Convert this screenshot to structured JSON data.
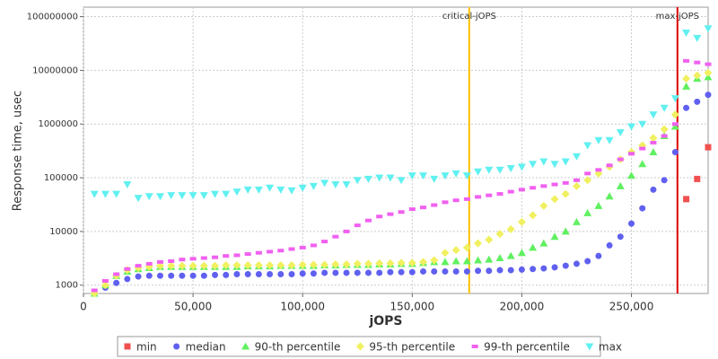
{
  "chart_data": {
    "type": "scatter",
    "x_label": "jOPS",
    "y_label": "Response time, usec",
    "log_y": true,
    "grid": true,
    "legend": "bottom",
    "xlim": [
      0,
      285000
    ],
    "ylim": [
      700,
      150000000
    ],
    "xticks": [
      0,
      {
        "value": 50000,
        "label": "50,000"
      },
      {
        "value": 100000,
        "label": "100,000"
      },
      {
        "value": 150000,
        "label": "150,000"
      },
      {
        "value": 200000,
        "label": "200,000"
      },
      {
        "value": 250000,
        "label": "250,000"
      }
    ],
    "yticks": [
      1000,
      10000,
      100000,
      1000000,
      10000000,
      100000000
    ],
    "markers": [
      {
        "label": "critical-jOPS",
        "value": 176000,
        "color": "#ffc000"
      },
      {
        "label": "max-jOPS",
        "value": 271000,
        "color": "#e00000"
      }
    ],
    "x": [
      5000,
      10000,
      15000,
      20000,
      25000,
      30000,
      35000,
      40000,
      45000,
      50000,
      55000,
      60000,
      65000,
      70000,
      75000,
      80000,
      85000,
      90000,
      95000,
      100000,
      105000,
      110000,
      115000,
      120000,
      125000,
      130000,
      135000,
      140000,
      145000,
      150000,
      155000,
      160000,
      165000,
      170000,
      175000,
      180000,
      185000,
      190000,
      195000,
      200000,
      205000,
      210000,
      215000,
      220000,
      225000,
      230000,
      235000,
      240000,
      245000,
      250000,
      255000,
      260000,
      265000,
      270000,
      275000,
      280000,
      285000
    ],
    "series": [
      {
        "name": "min",
        "color": "#f05050",
        "marker": "square",
        "values": [
          null,
          null,
          null,
          null,
          null,
          null,
          null,
          null,
          null,
          null,
          null,
          null,
          null,
          null,
          null,
          null,
          null,
          null,
          null,
          null,
          null,
          null,
          null,
          null,
          null,
          null,
          null,
          null,
          null,
          null,
          null,
          null,
          null,
          null,
          null,
          null,
          null,
          null,
          null,
          null,
          null,
          null,
          null,
          null,
          null,
          null,
          null,
          null,
          null,
          null,
          null,
          null,
          null,
          null,
          40000,
          95000,
          370000
        ]
      },
      {
        "name": "median",
        "color": "#6060f0",
        "marker": "circle",
        "values": [
          700,
          900,
          1100,
          1300,
          1450,
          1500,
          1500,
          1500,
          1500,
          1500,
          1500,
          1550,
          1550,
          1600,
          1600,
          1600,
          1600,
          1600,
          1600,
          1650,
          1650,
          1700,
          1700,
          1700,
          1700,
          1700,
          1700,
          1750,
          1750,
          1750,
          1800,
          1800,
          1800,
          1800,
          1800,
          1850,
          1850,
          1900,
          1900,
          1950,
          2000,
          2050,
          2150,
          2300,
          2500,
          2800,
          3500,
          5500,
          8000,
          14000,
          27000,
          60000,
          90000,
          300000,
          2000000,
          2600000,
          3500000
        ]
      },
      {
        "name": "90-th percentile",
        "color": "#60f060",
        "marker": "triangle-up",
        "values": [
          700,
          1000,
          1500,
          1800,
          2000,
          2100,
          2200,
          2200,
          2200,
          2200,
          2200,
          2200,
          2200,
          2200,
          2250,
          2250,
          2250,
          2300,
          2300,
          2300,
          2300,
          2350,
          2350,
          2400,
          2400,
          2400,
          2450,
          2450,
          2500,
          2500,
          2600,
          2700,
          2700,
          2800,
          2800,
          2900,
          3000,
          3200,
          3500,
          4000,
          5000,
          6000,
          8000,
          10000,
          15000,
          22000,
          30000,
          45000,
          70000,
          110000,
          180000,
          300000,
          600000,
          900000,
          5000000,
          7000000,
          7500000
        ]
      },
      {
        "name": "95-th percentile",
        "color": "#f0f060",
        "marker": "diamond",
        "values": [
          700,
          1000,
          1500,
          1900,
          2100,
          2200,
          2300,
          2300,
          2300,
          2300,
          2300,
          2300,
          2350,
          2350,
          2350,
          2350,
          2350,
          2350,
          2350,
          2400,
          2400,
          2400,
          2450,
          2450,
          2500,
          2500,
          2550,
          2550,
          2600,
          2600,
          2700,
          2900,
          4000,
          4500,
          5000,
          6000,
          7000,
          9000,
          11000,
          15000,
          20000,
          30000,
          40000,
          50000,
          70000,
          90000,
          120000,
          160000,
          220000,
          300000,
          400000,
          550000,
          800000,
          1500000,
          7000000,
          8000000,
          9000000
        ]
      },
      {
        "name": "99-th percentile",
        "color": "#f060f0",
        "marker": "dash",
        "values": [
          800,
          1200,
          1600,
          2000,
          2300,
          2500,
          2700,
          2800,
          3000,
          3100,
          3200,
          3300,
          3500,
          3600,
          3800,
          4000,
          4200,
          4400,
          4700,
          5000,
          5500,
          6500,
          8000,
          10000,
          13000,
          16000,
          19000,
          21000,
          23000,
          26000,
          28000,
          31000,
          35000,
          38000,
          40000,
          44000,
          47000,
          50000,
          55000,
          60000,
          65000,
          70000,
          75000,
          80000,
          90000,
          120000,
          140000,
          170000,
          220000,
          280000,
          350000,
          450000,
          600000,
          1000000,
          15000000,
          14000000,
          13000000
        ]
      },
      {
        "name": "max",
        "color": "#60f0f0",
        "marker": "triangle-down",
        "values": [
          50000,
          50000,
          50000,
          75000,
          42000,
          45000,
          45000,
          47000,
          47000,
          47000,
          47000,
          50000,
          50000,
          55000,
          60000,
          60000,
          65000,
          60000,
          58000,
          65000,
          70000,
          80000,
          75000,
          75000,
          90000,
          95000,
          100000,
          100000,
          90000,
          110000,
          110000,
          95000,
          110000,
          120000,
          110000,
          130000,
          140000,
          140000,
          150000,
          160000,
          180000,
          200000,
          180000,
          200000,
          250000,
          400000,
          500000,
          500000,
          700000,
          900000,
          1000000,
          1500000,
          2000000,
          3000000,
          50000000,
          40000000,
          60000000
        ]
      }
    ]
  }
}
